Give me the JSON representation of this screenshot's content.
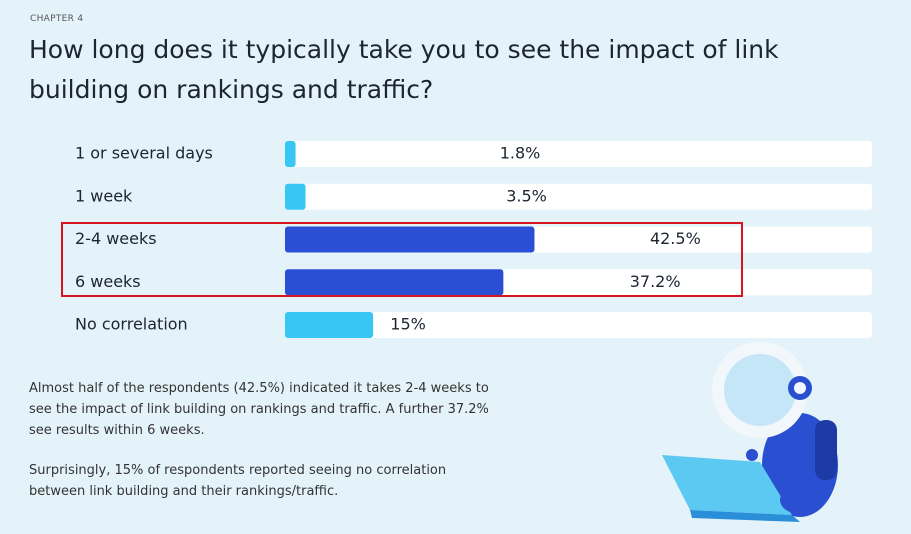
{
  "chart_data": {
    "type": "bar",
    "orientation": "horizontal",
    "chapter": "CHAPTER 4",
    "title": "How long does it typically take you to see the impact of link building on rankings and traffic?",
    "categories": [
      "1 or several days",
      "1 week",
      "2-4 weeks",
      "6 weeks",
      "No correlation"
    ],
    "values": [
      1.8,
      3.5,
      42.5,
      37.2,
      15
    ],
    "value_labels": [
      "1.8%",
      "3.5%",
      "42.5%",
      "37.2%",
      "15%"
    ],
    "colors": [
      "#38c6f4",
      "#38c6f4",
      "#2b4fd4",
      "#2b4fd4",
      "#38c6f4"
    ],
    "xlim": [
      0,
      100
    ]
  },
  "text": {
    "paragraphs": [
      "Almost half of the respondents (42.5%) indicated it takes 2-4 weeks to see the impact of link building on rankings and traffic. A further 37.2% see results within 6 weeks.",
      "Surprisingly, 15% of respondents reported seeing no correlation between link building and their rankings/traffic."
    ]
  }
}
